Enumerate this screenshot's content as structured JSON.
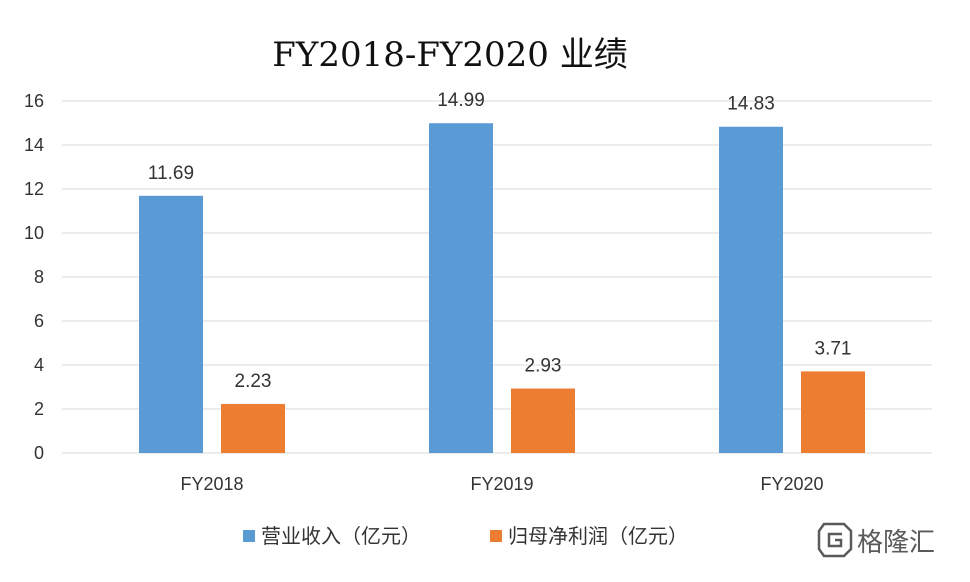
{
  "chart_data": {
    "type": "bar",
    "title": "FY2018-FY2020 业绩",
    "categories": [
      "FY2018",
      "FY2019",
      "FY2020"
    ],
    "series": [
      {
        "name": "营业收入（亿元）",
        "values": [
          11.69,
          14.99,
          14.83
        ],
        "color": "#5b9bd5"
      },
      {
        "name": "归母净利润（亿元）",
        "values": [
          2.23,
          2.93,
          3.71
        ],
        "color": "#ed7d31"
      }
    ],
    "ylim": [
      0,
      16
    ],
    "yticks": [
      0,
      2,
      4,
      6,
      8,
      10,
      12,
      14,
      16
    ],
    "grid": true,
    "legend": "bottom",
    "gridline_color": "#d9d9d9"
  },
  "watermark": {
    "logo_icon": "gelonghui-logo-icon",
    "text": "格隆汇"
  }
}
